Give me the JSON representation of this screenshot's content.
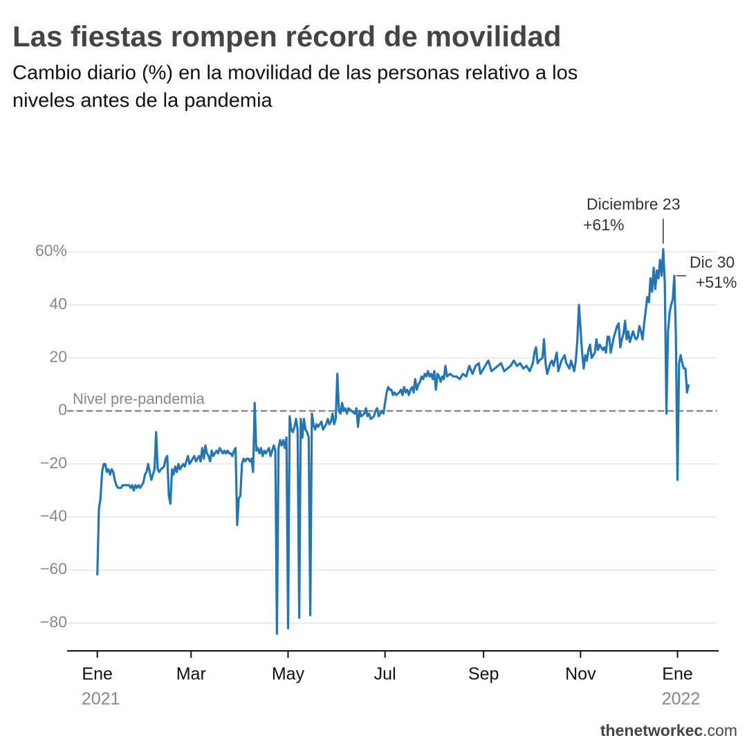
{
  "chart_data": {
    "type": "line",
    "title": "Las fiestas rompen récord de movilidad",
    "subtitle": [
      "Cambio diario (%) en la movilidad de las personas relativo a los",
      "niveles antes de la pandemia"
    ],
    "source": [
      "thenetworkec",
      ".com"
    ],
    "xlim": [
      -19,
      390
    ],
    "ylim": [
      -90.5,
      65
    ],
    "xticks": [
      {
        "value": 0,
        "label": "Ene"
      },
      {
        "value": 59,
        "label": "Mar"
      },
      {
        "value": 120,
        "label": "May"
      },
      {
        "value": 181,
        "label": "Jul"
      },
      {
        "value": 243,
        "label": "Sep"
      },
      {
        "value": 304,
        "label": "Nov"
      },
      {
        "value": 365,
        "label": "Ene"
      }
    ],
    "year_labels": [
      {
        "value": 0,
        "label": "2021"
      },
      {
        "value": 365,
        "label": "2022"
      }
    ],
    "yticks": [
      {
        "value": -80,
        "label": "−80"
      },
      {
        "value": -60,
        "label": "−60"
      },
      {
        "value": -40,
        "label": "−40"
      },
      {
        "value": -20,
        "label": "−20"
      },
      0,
      20,
      40,
      {
        "value": 60,
        "label": "60%"
      }
    ],
    "grid": true,
    "reference_line": {
      "value": 0,
      "label": "Nivel pre-pandemia",
      "color": "#888888"
    },
    "annotations": [
      {
        "text": "Diciembre 23",
        "value_label": "+61%",
        "x": 356,
        "y": 61
      },
      {
        "text": "Dic 30",
        "value_label": "+51%",
        "x": 363,
        "y": 51
      }
    ],
    "series": [
      {
        "name": "Movilidad",
        "color": "#2476b3",
        "x": [
          0,
          1,
          2,
          3,
          4,
          5,
          6,
          7,
          8,
          9,
          10,
          11,
          12,
          13,
          15,
          16,
          18,
          20,
          21,
          22,
          23,
          24,
          25,
          26,
          27,
          28,
          29,
          30,
          31,
          32,
          33,
          34,
          35,
          36,
          37,
          38,
          39,
          40,
          42,
          43,
          44,
          45,
          46,
          47,
          48,
          49,
          50,
          51,
          52,
          53,
          54,
          55,
          56,
          57,
          58,
          59,
          60,
          61,
          62,
          63,
          64,
          65,
          66,
          67,
          68,
          69,
          70,
          71,
          72,
          73,
          74,
          75,
          76,
          77,
          78,
          79,
          80,
          81,
          82,
          83,
          84,
          85,
          86,
          87,
          88,
          89,
          90,
          91,
          92,
          93,
          94,
          95,
          96,
          97,
          98,
          99,
          100,
          101,
          102,
          103,
          104,
          105,
          106,
          107,
          108,
          109,
          110,
          111,
          112,
          113,
          114,
          115,
          116,
          117,
          118,
          119,
          120,
          121,
          122,
          123,
          124,
          125,
          126,
          127,
          128,
          129,
          130,
          131,
          132,
          133,
          134,
          135,
          136,
          137,
          138,
          139,
          140,
          141,
          142,
          143,
          144,
          145,
          146,
          147,
          148,
          149,
          150,
          151,
          152,
          153,
          154,
          155,
          156,
          157,
          158,
          160,
          162,
          163,
          164,
          165,
          166,
          168,
          169,
          170,
          171,
          172,
          174,
          175,
          176,
          177,
          178,
          179,
          180,
          181,
          182,
          183,
          184,
          185,
          186,
          187,
          188,
          190,
          191,
          192,
          193,
          194,
          195,
          196,
          197,
          198,
          199,
          200,
          201,
          202,
          203,
          204,
          205,
          206,
          207,
          208,
          209,
          210,
          211,
          212,
          213,
          214,
          215,
          216,
          217,
          218,
          219,
          220,
          222,
          224,
          226,
          228,
          230,
          232,
          234,
          236,
          238,
          240,
          241,
          243,
          244,
          246,
          248,
          250,
          252,
          254,
          256,
          258,
          260,
          262,
          264,
          266,
          268,
          270,
          272,
          274,
          275,
          276,
          277,
          278,
          280,
          281,
          282,
          283,
          285,
          286,
          287,
          289,
          290,
          292,
          294,
          295,
          297,
          298,
          300,
          301,
          302,
          303,
          305,
          306,
          307,
          308,
          309,
          310,
          311,
          313,
          314,
          315,
          316,
          318,
          319,
          320,
          321,
          322,
          323,
          324,
          325,
          327,
          328,
          329,
          330,
          331,
          332,
          333,
          334,
          335,
          337,
          338,
          339,
          340,
          341,
          342,
          343,
          344,
          345,
          346,
          347,
          348,
          349,
          350,
          351,
          352,
          353,
          354,
          355,
          356,
          357,
          358,
          359,
          360,
          361,
          362,
          363,
          364,
          365,
          366,
          367,
          368,
          369,
          370,
          371,
          372
        ],
        "values": [
          -62,
          -37,
          -33,
          -23,
          -20,
          -20,
          -23,
          -22,
          -24,
          -22,
          -23,
          -26,
          -28,
          -29,
          -29,
          -28,
          -28,
          -28,
          -29,
          -28,
          -30,
          -28,
          -29,
          -28,
          -29,
          -28,
          -27,
          -24,
          -23,
          -20,
          -23,
          -26,
          -24,
          -22,
          -8,
          -22,
          -23,
          -22,
          -21,
          -18,
          -17,
          -32,
          -35,
          -22,
          -24,
          -21,
          -23,
          -20,
          -22,
          -21,
          -20,
          -21,
          -19,
          -17,
          -20,
          -19,
          -18,
          -17,
          -19,
          -18,
          -17,
          -19,
          -14,
          -18,
          -13,
          -16,
          -17,
          -19,
          -15,
          -17,
          -16,
          -15,
          -16,
          -14,
          -15,
          -16,
          -15,
          -16,
          -15,
          -16,
          -16,
          -17,
          -15,
          -14,
          -43,
          -33,
          -32,
          -20,
          -18,
          -19,
          -18,
          -18,
          -19,
          -18,
          -23,
          3,
          -15,
          -14,
          -16,
          -14,
          -17,
          -15,
          -16,
          -15,
          -14,
          -17,
          -15,
          -13,
          -15,
          -84,
          -14,
          -11,
          -13,
          -11,
          -14,
          -10,
          -82,
          -2,
          -7,
          -8,
          -6,
          -3,
          -7,
          -78,
          -3,
          -10,
          -3,
          -7,
          -8,
          -10,
          -77,
          -1,
          -5,
          -7,
          -5,
          -6,
          -5,
          -4,
          -7,
          -6,
          -5,
          -3,
          -5,
          -4,
          -1,
          -5,
          -3,
          14,
          0,
          -1,
          3,
          0,
          1,
          -1,
          1,
          0,
          -1,
          1,
          -6,
          0,
          -2,
          -1,
          1,
          -2,
          -1,
          -3,
          -2,
          0,
          1,
          -2,
          -1,
          0,
          -1,
          3,
          7,
          9,
          8,
          8,
          6,
          7,
          6,
          7,
          8,
          6,
          9,
          7,
          8,
          6,
          8,
          9,
          7,
          12,
          8,
          10,
          11,
          13,
          12,
          14,
          13,
          15,
          13,
          14,
          12,
          15,
          8,
          14,
          13,
          11,
          13,
          12,
          17,
          13,
          14,
          13,
          13,
          12,
          14,
          13,
          17,
          14,
          17,
          18,
          14,
          16,
          17,
          19,
          15,
          16,
          17,
          18,
          15,
          16,
          17,
          19,
          17,
          18,
          16,
          17,
          15,
          18,
          22,
          24,
          18,
          19,
          20,
          27,
          18,
          14,
          18,
          19,
          17,
          22,
          15,
          19,
          21,
          18,
          16,
          19,
          15,
          19,
          27,
          40,
          22,
          16,
          21,
          19,
          23,
          25,
          20,
          22,
          27,
          23,
          25,
          23,
          24,
          22,
          28,
          28,
          22,
          25,
          28,
          32,
          33,
          24,
          27,
          29,
          34,
          27,
          30,
          26,
          30,
          28,
          27,
          28,
          32,
          30,
          27,
          33,
          38,
          43,
          41,
          50,
          45,
          54,
          46,
          53,
          50,
          57,
          51,
          61,
          48,
          -1,
          30,
          37,
          40,
          42,
          51,
          28,
          -26,
          18,
          21,
          18,
          16,
          16,
          7,
          10
        ]
      }
    ]
  }
}
